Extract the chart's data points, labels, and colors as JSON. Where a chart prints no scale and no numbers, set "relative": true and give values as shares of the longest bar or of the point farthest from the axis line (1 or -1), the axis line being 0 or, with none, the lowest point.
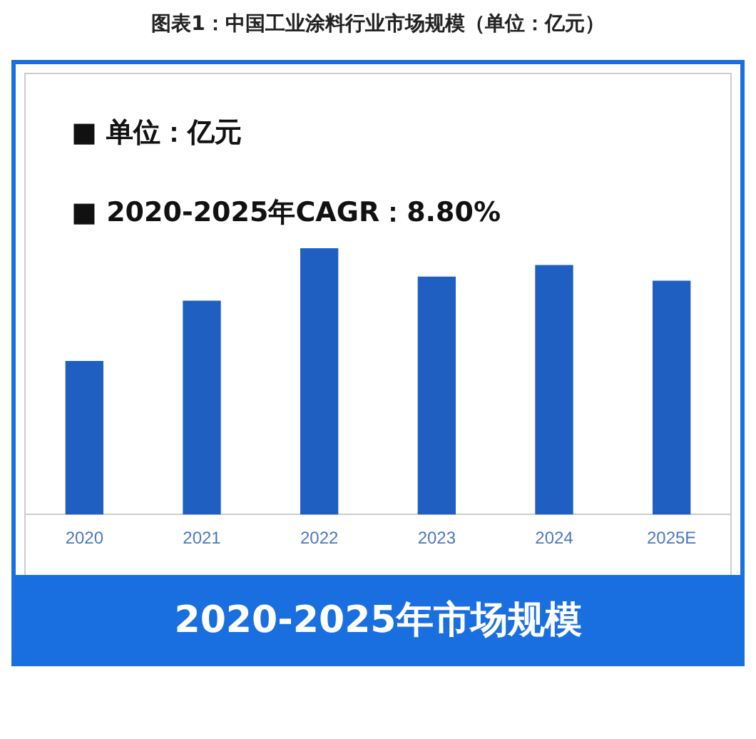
{
  "chart_data": {
    "type": "bar",
    "title": "图表1：中国工业涂料行业市场规模（单位：亿元）",
    "xlabel": "2020-2025年市场规模",
    "categories": [
      "2020",
      "2021",
      "2022",
      "2023",
      "2024",
      "2025E"
    ],
    "values": [
      0.575,
      0.801,
      1,
      0.892,
      0.935,
      0.876
    ],
    "color": "#1f5fc1",
    "relative": true,
    "grid": false,
    "legend": false,
    "annotations": [
      "■  单位：亿元",
      "■  2020-2025年CAGR：8.80%"
    ]
  }
}
